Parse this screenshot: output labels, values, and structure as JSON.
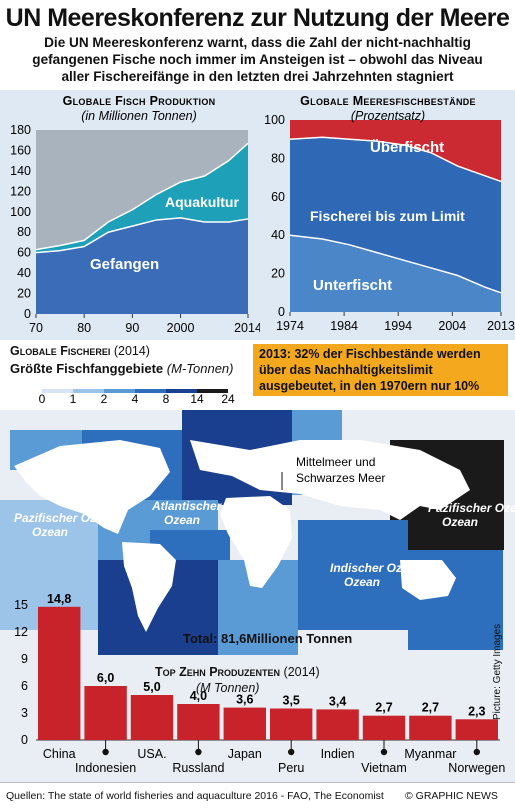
{
  "header": {
    "title": "UN Meereskonferenz zur Nutzung der Meere",
    "subtitle": "Die UN Meereskonferenz warnt, dass die Zahl der nicht-nachhaltig gefangenen Fische noch immer im Ansteigen ist – obwohl das Niveau aller Fischereifänge in den letzten drei Jahrzehnten stagniert"
  },
  "production_chart": {
    "title": "Globale Fisch Produktion",
    "subtitle": "(in Millionen Tonnen)",
    "aqua_label": "Aquakultur",
    "caught_label": "Gefangen",
    "y_ticks": [
      "180",
      "160",
      "140",
      "120",
      "100",
      "80",
      "60",
      "40",
      "20",
      "0"
    ],
    "x_ticks": [
      "70",
      "80",
      "90",
      "2000",
      "2014"
    ],
    "colors": {
      "caught": "#3a6cb8",
      "aqua": "#1ea0b8",
      "total_bg": "#a9b3bd"
    }
  },
  "stocks_chart": {
    "title": "Globale Meeresfischbestände",
    "subtitle": "(Prozentsatz)",
    "over_label": "Überfischt",
    "limit_label": "Fischerei bis zum Limit",
    "under_label": "Unterfischt",
    "y_ticks": [
      "100",
      "80",
      "60",
      "40",
      "20",
      "0"
    ],
    "x_ticks": [
      "1974",
      "1984",
      "1994",
      "2004",
      "2013"
    ],
    "colors": {
      "over": "#cc2a33",
      "limit": "#2f68b4",
      "under": "#4a86c8"
    }
  },
  "fishery": {
    "title_bold": "Globale Fischerei",
    "title_year": "(2014)",
    "subtitle": "Größte Fischfanggebiete",
    "subtitle_unit": "(M-Tonnen)",
    "legend": [
      "0",
      "1",
      "2",
      "4",
      "8",
      "14",
      "24"
    ],
    "legend_colors": [
      "#d6e4f4",
      "#9cc3e8",
      "#5b9bd5",
      "#2e6fbd",
      "#1a3f8f",
      "#1a1a1a"
    ],
    "callout": "2013: 32% der Fischbestände werden über das Nachhaltigkeitslimit ausgebeutet, in den 1970ern nur 10%",
    "med_label": "Mittelmeer und Schwarzes Meer",
    "oceans": [
      "Pazifischer Ozean",
      "Atlantischer Ozean",
      "Indischer Ozean",
      "Pazifischer Ozean"
    ],
    "total": "Total: 81,6Millionen Tonnen"
  },
  "top10": {
    "title": "Top Zehn Produzenten",
    "year": "(2014)",
    "unit": "(M Tonnen)",
    "y_ticks": [
      "15",
      "12",
      "9",
      "6",
      "3",
      "0"
    ]
  },
  "chart_data": [
    {
      "type": "area",
      "title": "Globale Fisch Produktion",
      "subtitle": "(in Millionen Tonnen)",
      "x": [
        1970,
        1975,
        1980,
        1985,
        1990,
        1995,
        2000,
        2005,
        2010,
        2014
      ],
      "series": [
        {
          "name": "Gefangen",
          "values": [
            60,
            62,
            66,
            80,
            86,
            92,
            94,
            90,
            90,
            93
          ]
        },
        {
          "name": "Aquakultur",
          "values": [
            3,
            5,
            6,
            10,
            16,
            25,
            35,
            45,
            60,
            74
          ]
        }
      ],
      "xlim": [
        1970,
        2014
      ],
      "ylim": [
        0,
        180
      ]
    },
    {
      "type": "area",
      "title": "Globale Meeresfischbestände",
      "subtitle": "(Prozentsatz)",
      "x": [
        1974,
        1980,
        1985,
        1990,
        1995,
        2000,
        2005,
        2010,
        2013
      ],
      "series": [
        {
          "name": "Unterfischt",
          "values": [
            40,
            38,
            35,
            31,
            27,
            23,
            19,
            13,
            10
          ]
        },
        {
          "name": "Fischerei bis zum Limit",
          "values": [
            50,
            53,
            55,
            58,
            60,
            60,
            57,
            58,
            58
          ]
        },
        {
          "name": "Überfischt",
          "values": [
            10,
            9,
            10,
            11,
            13,
            17,
            24,
            29,
            32
          ]
        }
      ],
      "xlim": [
        1974,
        2013
      ],
      "ylim": [
        0,
        100
      ]
    },
    {
      "type": "bar",
      "title": "Top Zehn Produzenten",
      "categories": [
        "China",
        "Indonesien",
        "USA.",
        "Russland",
        "Japan",
        "Peru",
        "Indien",
        "Vietnam",
        "Myanmar",
        "Norwegen"
      ],
      "values": [
        14.8,
        6.0,
        5.0,
        4.0,
        3.6,
        3.5,
        3.4,
        2.7,
        2.7,
        2.3
      ],
      "value_labels": [
        "14,8",
        "6,0",
        "5,0",
        "4,0",
        "3,6",
        "3,5",
        "3,4",
        "2,7",
        "2,7",
        "2,3"
      ],
      "ylim": [
        0,
        15
      ],
      "color": "#c8232b"
    }
  ],
  "footer": {
    "source": "Quellen: The state of world fisheries and aquaculture 2016 - FAO, The Economist",
    "brand": "© GRAPHIC NEWS",
    "credit": "Picture: Getty Images"
  }
}
